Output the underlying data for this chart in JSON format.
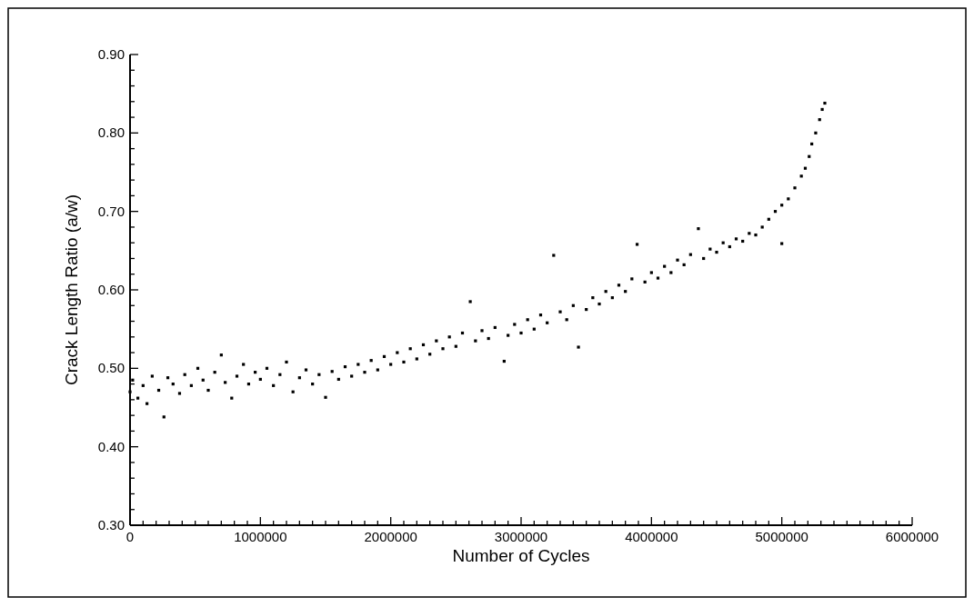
{
  "chart_data": {
    "type": "scatter",
    "xlabel": "Number of Cycles",
    "ylabel": "Crack Length Ratio (a/w)",
    "xlim": [
      0,
      6000000
    ],
    "ylim": [
      0.3,
      0.9
    ],
    "xticks": [
      0,
      {
        "value": 100000,
        "label": null
      },
      {
        "value": 200000,
        "label": null
      },
      {
        "value": 300000,
        "label": null
      },
      {
        "value": 400000,
        "label": null
      },
      {
        "value": 500000,
        "label": null
      },
      {
        "value": 600000,
        "label": null
      },
      {
        "value": 700000,
        "label": null
      },
      {
        "value": 800000,
        "label": null
      },
      {
        "value": 900000,
        "label": null
      },
      1000000,
      {
        "value": 1100000,
        "label": null
      },
      {
        "value": 1200000,
        "label": null
      },
      {
        "value": 1300000,
        "label": null
      },
      {
        "value": 1400000,
        "label": null
      },
      {
        "value": 1500000,
        "label": null
      },
      {
        "value": 1600000,
        "label": null
      },
      {
        "value": 1700000,
        "label": null
      },
      {
        "value": 1800000,
        "label": null
      },
      {
        "value": 1900000,
        "label": null
      },
      2000000,
      {
        "value": 2100000,
        "label": null
      },
      {
        "value": 2200000,
        "label": null
      },
      {
        "value": 2300000,
        "label": null
      },
      {
        "value": 2400000,
        "label": null
      },
      {
        "value": 2500000,
        "label": null
      },
      {
        "value": 2600000,
        "label": null
      },
      {
        "value": 2700000,
        "label": null
      },
      {
        "value": 2800000,
        "label": null
      },
      {
        "value": 2900000,
        "label": null
      },
      3000000,
      {
        "value": 3100000,
        "label": null
      },
      {
        "value": 3200000,
        "label": null
      },
      {
        "value": 3300000,
        "label": null
      },
      {
        "value": 3400000,
        "label": null
      },
      {
        "value": 3500000,
        "label": null
      },
      {
        "value": 3600000,
        "label": null
      },
      {
        "value": 3700000,
        "label": null
      },
      {
        "value": 3800000,
        "label": null
      },
      {
        "value": 3900000,
        "label": null
      },
      4000000,
      {
        "value": 4100000,
        "label": null
      },
      {
        "value": 4200000,
        "label": null
      },
      {
        "value": 4300000,
        "label": null
      },
      {
        "value": 4400000,
        "label": null
      },
      {
        "value": 4500000,
        "label": null
      },
      {
        "value": 4600000,
        "label": null
      },
      {
        "value": 4700000,
        "label": null
      },
      {
        "value": 4800000,
        "label": null
      },
      {
        "value": 4900000,
        "label": null
      },
      5000000,
      {
        "value": 5100000,
        "label": null
      },
      {
        "value": 5200000,
        "label": null
      },
      {
        "value": 5300000,
        "label": null
      },
      {
        "value": 5400000,
        "label": null
      },
      {
        "value": 5500000,
        "label": null
      },
      {
        "value": 5600000,
        "label": null
      },
      {
        "value": 5700000,
        "label": null
      },
      {
        "value": 5800000,
        "label": null
      },
      {
        "value": 5900000,
        "label": null
      },
      6000000
    ],
    "yticks": [
      {
        "value": 0.3,
        "label": "0.30"
      },
      {
        "value": 0.32,
        "label": null
      },
      {
        "value": 0.34,
        "label": null
      },
      {
        "value": 0.36,
        "label": null
      },
      {
        "value": 0.38,
        "label": null
      },
      {
        "value": 0.4,
        "label": "0.40"
      },
      {
        "value": 0.42,
        "label": null
      },
      {
        "value": 0.44,
        "label": null
      },
      {
        "value": 0.46,
        "label": null
      },
      {
        "value": 0.48,
        "label": null
      },
      {
        "value": 0.5,
        "label": "0.50"
      },
      {
        "value": 0.52,
        "label": null
      },
      {
        "value": 0.54,
        "label": null
      },
      {
        "value": 0.56,
        "label": null
      },
      {
        "value": 0.58,
        "label": null
      },
      {
        "value": 0.6,
        "label": "0.60"
      },
      {
        "value": 0.62,
        "label": null
      },
      {
        "value": 0.64,
        "label": null
      },
      {
        "value": 0.66,
        "label": null
      },
      {
        "value": 0.68,
        "label": null
      },
      {
        "value": 0.7,
        "label": "0.70"
      },
      {
        "value": 0.72,
        "label": null
      },
      {
        "value": 0.74,
        "label": null
      },
      {
        "value": 0.76,
        "label": null
      },
      {
        "value": 0.78,
        "label": null
      },
      {
        "value": 0.8,
        "label": "0.80"
      },
      {
        "value": 0.82,
        "label": null
      },
      {
        "value": 0.84,
        "label": null
      },
      {
        "value": 0.86,
        "label": null
      },
      {
        "value": 0.88,
        "label": null
      },
      {
        "value": 0.9,
        "label": "0.90"
      }
    ],
    "grid": false,
    "marker": "square",
    "series": [
      {
        "color": "#000000",
        "x": [
          0,
          20000,
          60000,
          100000,
          130000,
          170000,
          220000,
          260000,
          290000,
          330000,
          380000,
          420000,
          470000,
          520000,
          560000,
          600000,
          650000,
          700000,
          730000,
          780000,
          820000,
          870000,
          910000,
          960000,
          1000000,
          1050000,
          1100000,
          1150000,
          1200000,
          1250000,
          1300000,
          1350000,
          1400000,
          1450000,
          1500000,
          1550000,
          1600000,
          1650000,
          1700000,
          1750000,
          1800000,
          1850000,
          1900000,
          1950000,
          2000000,
          2050000,
          2100000,
          2150000,
          2200000,
          2250000,
          2300000,
          2350000,
          2400000,
          2450000,
          2500000,
          2550000,
          2610000,
          2650000,
          2700000,
          2750000,
          2800000,
          2870000,
          2900000,
          2950000,
          3000000,
          3050000,
          3100000,
          3150000,
          3200000,
          3250000,
          3300000,
          3350000,
          3400000,
          3440000,
          3500000,
          3550000,
          3600000,
          3650000,
          3700000,
          3750000,
          3800000,
          3850000,
          3890000,
          3950000,
          4000000,
          4050000,
          4100000,
          4150000,
          4200000,
          4250000,
          4300000,
          4360000,
          4400000,
          4450000,
          4500000,
          4550000,
          4600000,
          4650000,
          4700000,
          4750000,
          4800000,
          4850000,
          4900000,
          4950000,
          5000000,
          5000000,
          5050000,
          5100000,
          5150000,
          5180000,
          5210000,
          5230000,
          5260000,
          5290000,
          5310000,
          5330000
        ],
        "values": [
          0.47,
          0.485,
          0.462,
          0.478,
          0.455,
          0.49,
          0.472,
          0.438,
          0.488,
          0.48,
          0.468,
          0.492,
          0.478,
          0.5,
          0.485,
          0.472,
          0.495,
          0.517,
          0.482,
          0.462,
          0.49,
          0.505,
          0.48,
          0.495,
          0.486,
          0.5,
          0.478,
          0.492,
          0.508,
          0.47,
          0.488,
          0.498,
          0.48,
          0.492,
          0.463,
          0.496,
          0.486,
          0.502,
          0.49,
          0.505,
          0.495,
          0.51,
          0.498,
          0.515,
          0.505,
          0.52,
          0.508,
          0.525,
          0.512,
          0.53,
          0.518,
          0.535,
          0.525,
          0.54,
          0.528,
          0.545,
          0.585,
          0.535,
          0.548,
          0.538,
          0.552,
          0.509,
          0.542,
          0.556,
          0.545,
          0.562,
          0.55,
          0.568,
          0.558,
          0.644,
          0.572,
          0.562,
          0.58,
          0.527,
          0.575,
          0.59,
          0.582,
          0.598,
          0.59,
          0.606,
          0.598,
          0.614,
          0.658,
          0.61,
          0.622,
          0.615,
          0.63,
          0.622,
          0.638,
          0.632,
          0.645,
          0.678,
          0.64,
          0.652,
          0.648,
          0.66,
          0.655,
          0.665,
          0.662,
          0.672,
          0.67,
          0.68,
          0.69,
          0.7,
          0.659,
          0.708,
          0.716,
          0.73,
          0.745,
          0.755,
          0.77,
          0.786,
          0.8,
          0.817,
          0.83,
          0.838
        ]
      }
    ]
  }
}
